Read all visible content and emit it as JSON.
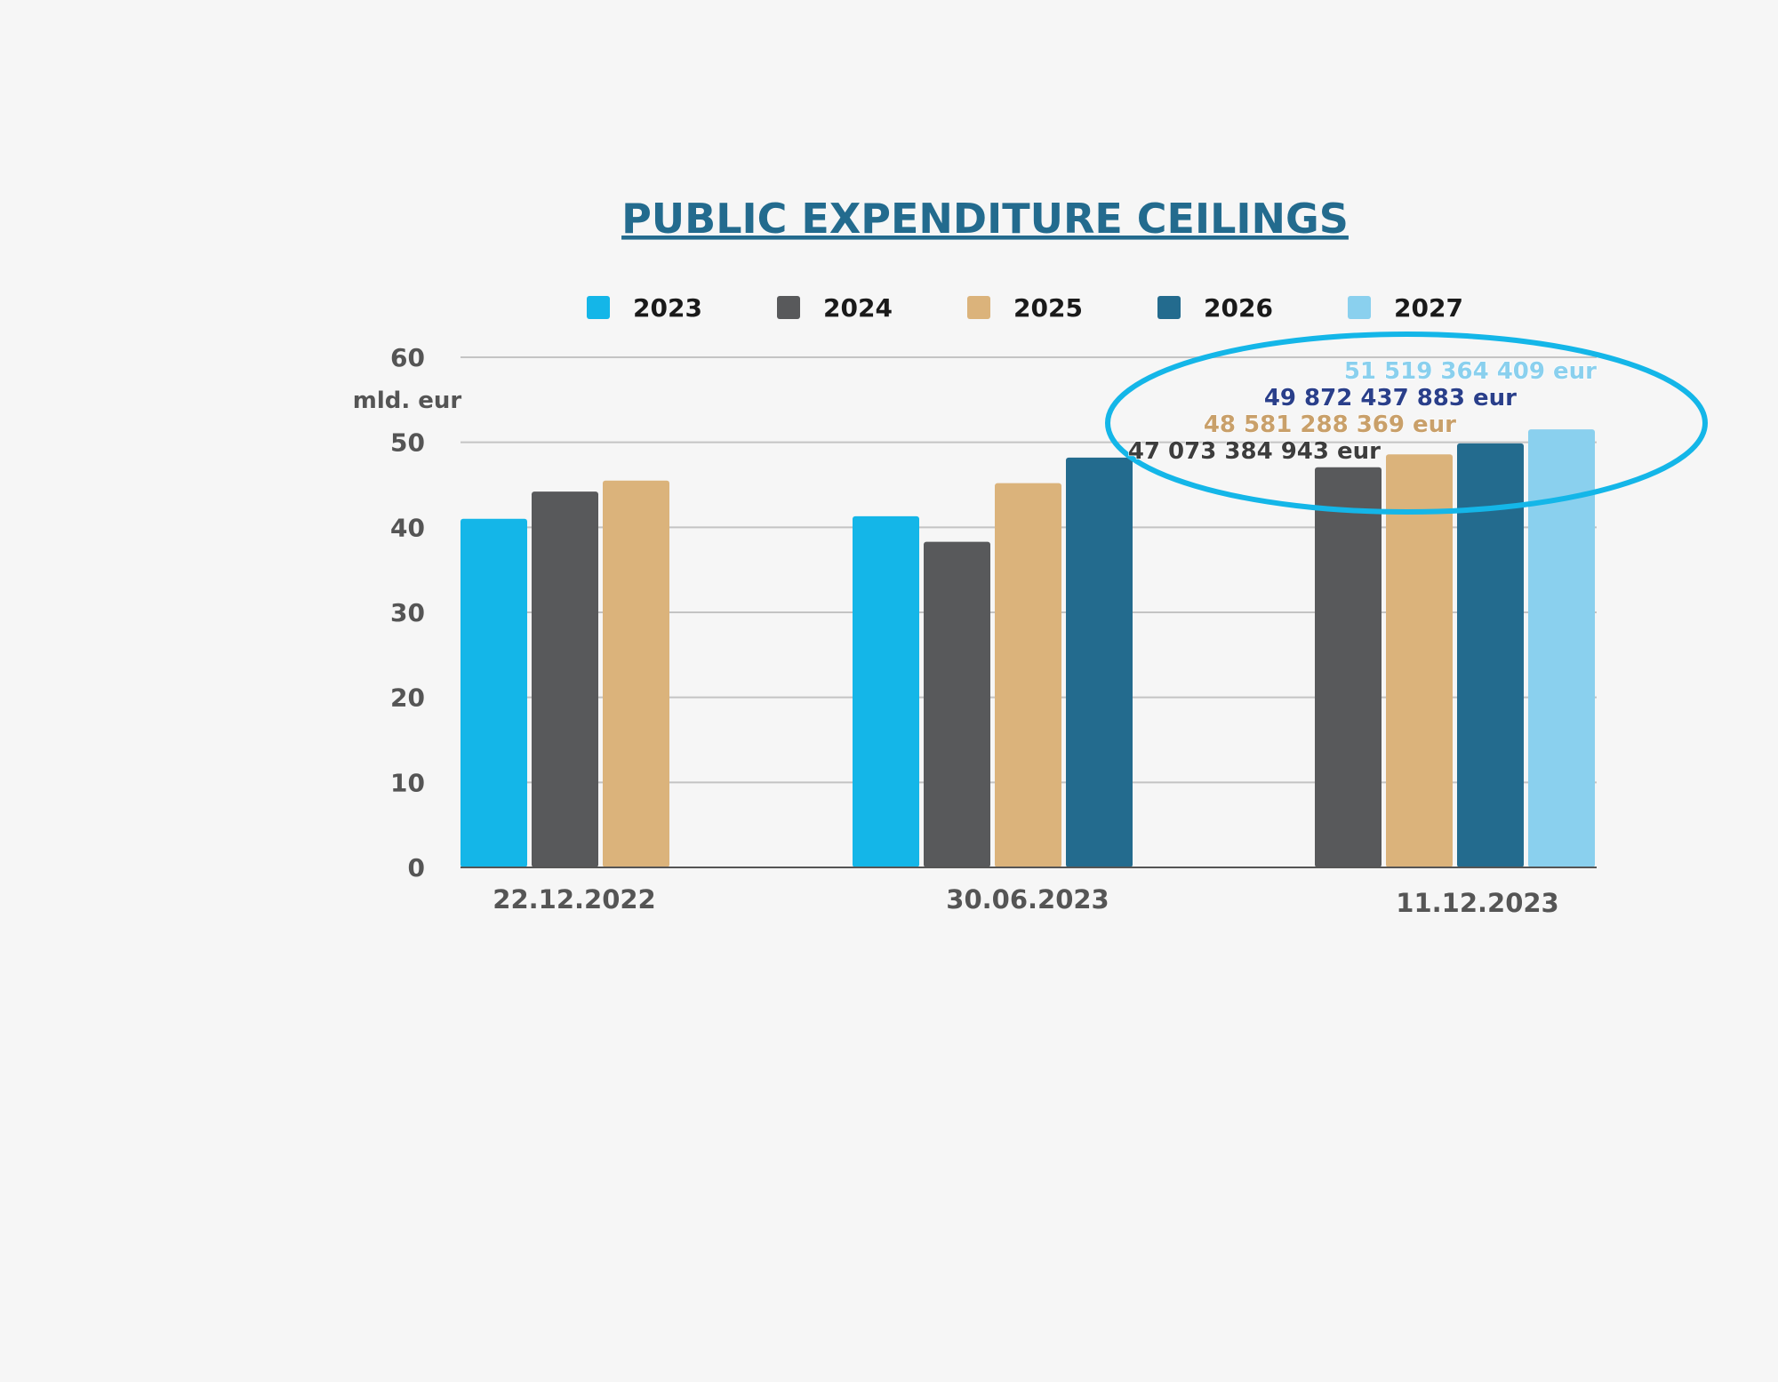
{
  "chart_data": {
    "type": "bar",
    "title": "PUBLIC EXPENDITURE CEILINGS",
    "ylabel": "mld. eur",
    "xlabel": "",
    "ylim": [
      0,
      60
    ],
    "yticks": [
      0,
      10,
      20,
      30,
      40,
      50,
      60
    ],
    "grid": true,
    "legend_position": "top",
    "categories": [
      "22.12.2022",
      "30.06.2023",
      "11.12.2023"
    ],
    "series": [
      {
        "name": "2023",
        "color": "#14b6e8",
        "values": [
          41.0,
          41.3,
          null
        ]
      },
      {
        "name": "2024",
        "color": "#58595b",
        "values": [
          44.2,
          38.3,
          47.07
        ]
      },
      {
        "name": "2025",
        "color": "#dbb37b",
        "values": [
          45.5,
          45.2,
          48.58
        ]
      },
      {
        "name": "2026",
        "color": "#236b8e",
        "values": [
          null,
          48.2,
          49.87
        ]
      },
      {
        "name": "2027",
        "color": "#8ad0ee",
        "values": [
          null,
          null,
          51.52
        ]
      }
    ],
    "annotations": [
      {
        "text": "47 073 384 943 eur",
        "series": "2024",
        "category": "11.12.2023",
        "color": "#3d3d3d"
      },
      {
        "text": "48 581 288 369 eur",
        "series": "2025",
        "category": "11.12.2023",
        "color": "#c9a06a"
      },
      {
        "text": "49 872 437 883 eur",
        "series": "2026",
        "category": "11.12.2023",
        "color": "#2a3f8a"
      },
      {
        "text": "51 519 364 409 eur",
        "series": "2027",
        "category": "11.12.2023",
        "color": "#8ad0ee"
      }
    ],
    "highlight_color": "#14b6e8"
  }
}
